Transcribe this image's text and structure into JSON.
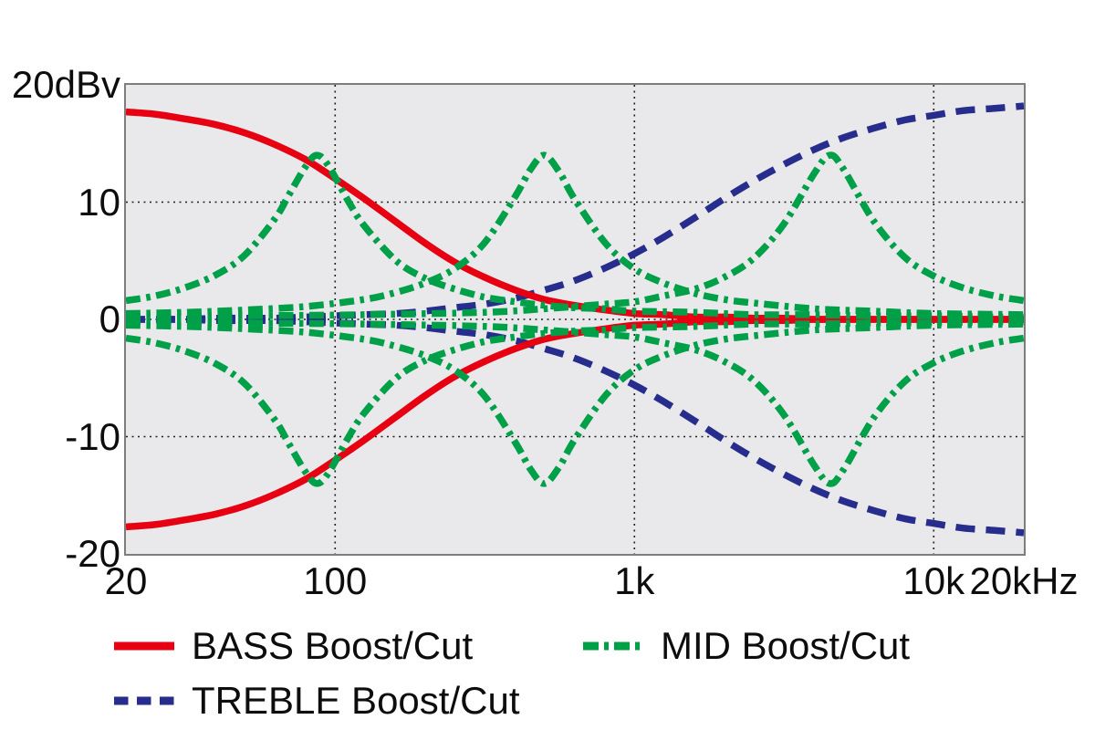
{
  "colors": {
    "background": "#ffffff",
    "plot_background": "#e9e9eb",
    "plot_border": "#7d7d7d",
    "gridline": "#1f1f1f",
    "text": "#0d0d0d",
    "bass_red": "#e60012",
    "mid_green": "#00a049",
    "treble_blue": "#272d8c"
  },
  "axes": {
    "y_ticks": [
      {
        "value": 20,
        "label": "20dBv"
      },
      {
        "value": 10,
        "label": "10"
      },
      {
        "value": 0,
        "label": "0"
      },
      {
        "value": -10,
        "label": "-10"
      },
      {
        "value": -20,
        "label": "-20"
      }
    ],
    "x_ticks": [
      {
        "value": 20,
        "label": "20"
      },
      {
        "value": 100,
        "label": "100"
      },
      {
        "value": 1000,
        "label": "1k"
      },
      {
        "value": 10000,
        "label": "10k"
      },
      {
        "value": 20000,
        "label": "20kHz"
      }
    ]
  },
  "legend": {
    "items": [
      {
        "style": "bass",
        "label": "BASS Boost/Cut"
      },
      {
        "style": "mid",
        "label": "MID Boost/Cut"
      },
      {
        "style": "treble",
        "label": "TREBLE Boost/Cut"
      }
    ]
  },
  "chart_data": {
    "type": "line",
    "x_scale": "log",
    "x_unit": "Hz",
    "y_unit": "dBv",
    "x_range": [
      20,
      20000
    ],
    "y_range": [
      -20,
      20
    ],
    "x_gridlines": [
      100,
      1000,
      10000
    ],
    "y_gridlines": [
      10,
      0,
      -10
    ],
    "grid": true,
    "legend_position": "bottom",
    "styles": {
      "bass": {
        "color": "#e60012",
        "dash": [],
        "legend_dash": []
      },
      "mid": {
        "color": "#00a049",
        "dash": [
          16,
          6.5,
          4.5,
          6.5
        ],
        "legend_dash": [
          17,
          6,
          5,
          6
        ]
      },
      "treble": {
        "color": "#272d8c",
        "dash": [
          21,
          12
        ],
        "legend_dash": [
          15.5,
          9.5
        ]
      }
    },
    "series": [
      {
        "id": "treble-boost",
        "style": "treble",
        "f": [
          20,
          25,
          31.5,
          40,
          50,
          63,
          80,
          100,
          125,
          160,
          200,
          250,
          315,
          400,
          500,
          630,
          800,
          1000,
          1250,
          1600,
          2000,
          2500,
          3150,
          4000,
          5000,
          6300,
          8000,
          10000,
          12500,
          16000,
          20000
        ],
        "db": [
          0.0,
          0.0,
          0.0,
          0.1,
          0.1,
          0.1,
          0.2,
          0.3,
          0.4,
          0.5,
          0.7,
          1.0,
          1.3,
          1.8,
          2.5,
          3.3,
          4.4,
          5.6,
          7.0,
          8.7,
          10.3,
          11.8,
          13.2,
          14.5,
          15.5,
          16.3,
          17.0,
          17.4,
          17.8,
          18.0,
          18.2
        ]
      },
      {
        "id": "treble-cut",
        "style": "treble",
        "f": [
          20,
          25,
          31.5,
          40,
          50,
          63,
          80,
          100,
          125,
          160,
          200,
          250,
          315,
          400,
          500,
          630,
          800,
          1000,
          1250,
          1600,
          2000,
          2500,
          3150,
          4000,
          5000,
          6300,
          8000,
          10000,
          12500,
          16000,
          20000
        ],
        "db": [
          0.0,
          0.0,
          0.0,
          -0.1,
          -0.1,
          -0.1,
          -0.2,
          -0.3,
          -0.4,
          -0.5,
          -0.7,
          -1.0,
          -1.3,
          -1.8,
          -2.5,
          -3.3,
          -4.4,
          -5.6,
          -7.0,
          -8.7,
          -10.3,
          -11.8,
          -13.2,
          -14.5,
          -15.5,
          -16.3,
          -17.0,
          -17.4,
          -17.8,
          -18.0,
          -18.2
        ]
      },
      {
        "id": "bass-boost",
        "style": "bass",
        "f": [
          20,
          25,
          31.5,
          40,
          50,
          63,
          80,
          100,
          125,
          160,
          200,
          250,
          315,
          400,
          500,
          630,
          800,
          1000,
          1250,
          1600,
          2000,
          2500,
          3150,
          4000,
          5000,
          6300,
          8000,
          10000,
          12500,
          16000,
          20000
        ],
        "db": [
          17.7,
          17.5,
          17.1,
          16.6,
          15.9,
          14.9,
          13.6,
          12.0,
          10.3,
          8.3,
          6.5,
          4.9,
          3.6,
          2.5,
          1.7,
          1.2,
          0.8,
          0.5,
          0.4,
          0.2,
          0.2,
          0.1,
          0.1,
          0.0,
          0.0,
          0.0,
          0.0,
          0.0,
          0.0,
          0.0,
          0.0
        ]
      },
      {
        "id": "bass-cut",
        "style": "bass",
        "f": [
          20,
          25,
          31.5,
          40,
          50,
          63,
          80,
          100,
          125,
          160,
          200,
          250,
          315,
          400,
          500,
          630,
          800,
          1000,
          1250,
          1600,
          2000,
          2500,
          3150,
          4000,
          5000,
          6300,
          8000,
          10000,
          12500,
          16000,
          20000
        ],
        "db": [
          -17.7,
          -17.5,
          -17.1,
          -16.6,
          -15.9,
          -14.9,
          -13.6,
          -12.0,
          -10.3,
          -8.3,
          -6.5,
          -4.9,
          -3.6,
          -2.5,
          -1.7,
          -1.2,
          -0.8,
          -0.5,
          -0.4,
          -0.2,
          -0.2,
          -0.1,
          -0.1,
          0.0,
          0.0,
          0.0,
          0.0,
          0.0,
          0.0,
          0.0,
          0.0
        ]
      },
      {
        "id": "mid-low-boost",
        "style": "mid",
        "center_hz": 87,
        "f": [
          20,
          25,
          31.5,
          40,
          50,
          63,
          70,
          80,
          87,
          95,
          110,
          125,
          160,
          200,
          250,
          315,
          400,
          500,
          630,
          800,
          1000,
          1600,
          2500,
          4000,
          6300,
          10000,
          16000,
          20000
        ],
        "db": [
          1.6,
          2.0,
          2.7,
          3.8,
          5.5,
          8.6,
          10.6,
          13.1,
          14.0,
          13.1,
          10.2,
          8.0,
          5.0,
          3.5,
          2.6,
          1.9,
          1.5,
          1.2,
          1.0,
          0.9,
          0.7,
          0.6,
          0.4,
          0.4,
          0.3,
          0.3,
          0.2,
          0.2
        ]
      },
      {
        "id": "mid-low-cut",
        "style": "mid",
        "center_hz": 87,
        "f": [
          20,
          25,
          31.5,
          40,
          50,
          63,
          70,
          80,
          87,
          95,
          110,
          125,
          160,
          200,
          250,
          315,
          400,
          500,
          630,
          800,
          1000,
          1600,
          2500,
          4000,
          6300,
          10000,
          16000,
          20000
        ],
        "db": [
          -1.6,
          -2.0,
          -2.7,
          -3.8,
          -5.5,
          -8.6,
          -10.6,
          -13.1,
          -14.0,
          -13.1,
          -10.2,
          -8.0,
          -5.0,
          -3.5,
          -2.6,
          -1.9,
          -1.5,
          -1.2,
          -1.0,
          -0.9,
          -0.7,
          -0.6,
          -0.4,
          -0.4,
          -0.3,
          -0.3,
          -0.2,
          -0.2
        ]
      },
      {
        "id": "mid-center-boost",
        "style": "mid",
        "center_hz": 500,
        "f": [
          20,
          31.5,
          50,
          80,
          125,
          160,
          200,
          250,
          315,
          400,
          450,
          500,
          560,
          630,
          800,
          1000,
          1250,
          1600,
          2000,
          2500,
          4000,
          6300,
          10000,
          20000
        ],
        "db": [
          0.5,
          0.6,
          0.8,
          1.1,
          1.7,
          2.3,
          3.1,
          4.3,
          6.5,
          10.5,
          12.8,
          14.0,
          12.6,
          10.3,
          6.5,
          4.3,
          3.1,
          2.2,
          1.7,
          1.4,
          0.9,
          0.7,
          0.5,
          0.4
        ]
      },
      {
        "id": "mid-center-cut",
        "style": "mid",
        "center_hz": 500,
        "f": [
          20,
          31.5,
          50,
          80,
          125,
          160,
          200,
          250,
          315,
          400,
          450,
          500,
          560,
          630,
          800,
          1000,
          1250,
          1600,
          2000,
          2500,
          4000,
          6300,
          10000,
          20000
        ],
        "db": [
          -0.5,
          -0.6,
          -0.8,
          -1.1,
          -1.7,
          -2.3,
          -3.1,
          -4.3,
          -6.5,
          -10.5,
          -12.8,
          -14.0,
          -12.6,
          -10.3,
          -6.5,
          -4.3,
          -3.1,
          -2.2,
          -1.7,
          -1.4,
          -0.9,
          -0.7,
          -0.5,
          -0.4
        ]
      },
      {
        "id": "mid-high-boost",
        "style": "mid",
        "center_hz": 4500,
        "f": [
          20,
          50,
          125,
          315,
          500,
          800,
          1000,
          1250,
          1600,
          2000,
          2500,
          3150,
          4000,
          4500,
          5000,
          6300,
          8000,
          10000,
          12500,
          16000,
          20000
        ],
        "db": [
          0.2,
          0.3,
          0.4,
          0.6,
          0.9,
          1.3,
          1.5,
          2.0,
          2.6,
          3.6,
          5.2,
          8.1,
          12.5,
          14.0,
          12.8,
          8.4,
          5.3,
          3.7,
          2.7,
          2.0,
          1.6
        ]
      },
      {
        "id": "mid-high-cut",
        "style": "mid",
        "center_hz": 4500,
        "f": [
          20,
          50,
          125,
          315,
          500,
          800,
          1000,
          1250,
          1600,
          2000,
          2500,
          3150,
          4000,
          4500,
          5000,
          6300,
          8000,
          10000,
          12500,
          16000,
          20000
        ],
        "db": [
          -0.2,
          -0.3,
          -0.4,
          -0.6,
          -0.9,
          -1.3,
          -1.5,
          -2.0,
          -2.6,
          -3.6,
          -5.2,
          -8.1,
          -12.5,
          -14.0,
          -12.8,
          -8.4,
          -5.3,
          -3.7,
          -2.7,
          -2.0,
          -1.6
        ]
      }
    ]
  }
}
